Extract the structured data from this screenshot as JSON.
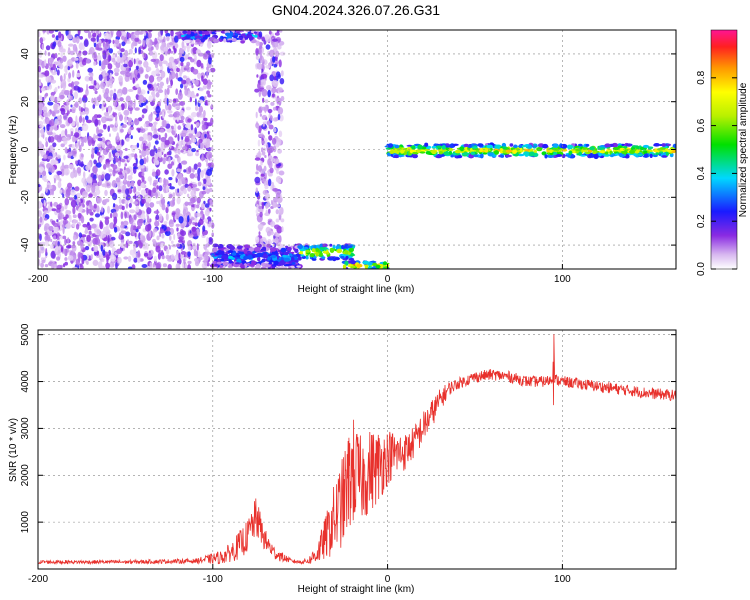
{
  "title": "GN04.2024.326.07.26.G31",
  "colors": {
    "snr_line": "#e8312c",
    "spectrogram_background": "#ffffff",
    "axes": "#000000",
    "grid": "#888888"
  },
  "chart_data": [
    {
      "type": "heatmap",
      "title": "GN04.2024.326.07.26.G31",
      "xlabel": "Height of straight line (km)",
      "ylabel": "Frequency (Hz)",
      "xlim": [
        -200,
        165
      ],
      "ylim": [
        -50,
        50
      ],
      "xticks": [
        -200,
        -100,
        0,
        100
      ],
      "yticks": [
        -40,
        -20,
        0,
        20,
        40
      ],
      "grid": true,
      "colormap": "rainbow (violet-blue-cyan-green-yellow-orange-red-magenta)",
      "colorbar": {
        "label": "Normalized spectral amplitude",
        "range": [
          0,
          1
        ],
        "ticks": [
          "0.0",
          "0.2",
          "0.4",
          "0.6",
          "0.8"
        ]
      },
      "regions": [
        {
          "x_range": [
            -200,
            -100
          ],
          "y_range": [
            -50,
            50
          ],
          "amplitude": 0.12,
          "pattern": "scattered noise"
        },
        {
          "x_range": [
            -75,
            -60
          ],
          "y_range": [
            -50,
            50
          ],
          "amplitude": 0.08,
          "pattern": "scattered noise"
        },
        {
          "x_range": [
            -120,
            -75
          ],
          "y_range": [
            45,
            50
          ],
          "amplitude": 0.3,
          "pattern": "edge band"
        },
        {
          "x_range": [
            -100,
            -50
          ],
          "y_range": [
            -50,
            -40
          ],
          "amplitude": 0.3,
          "pattern": "edge band"
        },
        {
          "x_range": [
            -50,
            -20
          ],
          "y_range": [
            -46,
            -40
          ],
          "amplitude": 0.7,
          "pattern": "tone descending"
        },
        {
          "x_range": [
            -25,
            0
          ],
          "y_range": [
            -50,
            -47
          ],
          "amplitude": 0.8,
          "pattern": "tone"
        },
        {
          "x_range": [
            0,
            165
          ],
          "y_range": [
            -3,
            2
          ],
          "amplitude": 0.75,
          "pattern": "tone near 0 Hz"
        }
      ]
    },
    {
      "type": "line",
      "xlabel": "Height of straight line (km)",
      "ylabel": "SNR (10 * v/v)",
      "xlim": [
        -200,
        165
      ],
      "ylim": [
        0,
        5100
      ],
      "xticks": [
        -200,
        -100,
        0,
        100
      ],
      "yticks": [
        1000,
        2000,
        3000,
        4000,
        5000
      ],
      "grid": true,
      "series": [
        {
          "color": "#e8312c",
          "x": [
            -200,
            -150,
            -110,
            -95,
            -90,
            -85,
            -80,
            -78,
            -75,
            -73,
            -70,
            -65,
            -60,
            -55,
            -50,
            -45,
            -40,
            -35,
            -30,
            -25,
            -22,
            -20,
            -18,
            -15,
            -12,
            -10,
            -5,
            0,
            5,
            10,
            15,
            20,
            25,
            30,
            35,
            40,
            50,
            60,
            70,
            80,
            90,
            95,
            100,
            110,
            120,
            130,
            140,
            150,
            165
          ],
          "y": [
            150,
            150,
            170,
            250,
            350,
            500,
            700,
            900,
            1100,
            900,
            600,
            350,
            250,
            170,
            150,
            180,
            350,
            700,
            1100,
            1500,
            1900,
            2100,
            2000,
            1900,
            2000,
            2100,
            2200,
            2400,
            2450,
            2500,
            2700,
            3000,
            3300,
            3600,
            3850,
            3950,
            4100,
            4150,
            4100,
            4000,
            4000,
            4050,
            4000,
            3950,
            3900,
            3850,
            3800,
            3750,
            3700
          ],
          "noise": [
            40,
            40,
            50,
            150,
            200,
            300,
            350,
            400,
            450,
            350,
            250,
            150,
            100,
            40,
            40,
            80,
            250,
            500,
            800,
            1000,
            1100,
            1200,
            1100,
            900,
            900,
            900,
            800,
            600,
            500,
            400,
            350,
            350,
            300,
            250,
            150,
            120,
            120,
            120,
            120,
            120,
            120,
            120,
            120,
            120,
            120,
            120,
            120,
            120,
            120
          ]
        }
      ]
    }
  ]
}
